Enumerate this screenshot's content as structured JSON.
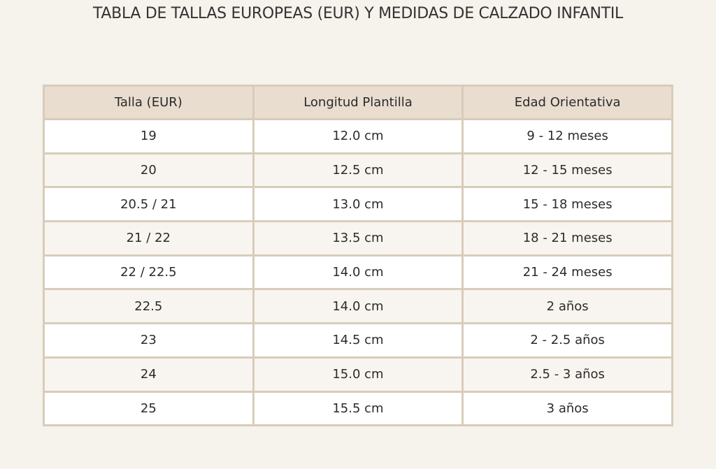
{
  "header": {
    "title": "TABLA DE TALLAS EUROPEAS (EUR) Y MEDIDAS DE CALZADO INFANTIL"
  },
  "table": {
    "columns": [
      "Talla (EUR)",
      "Longitud Plantilla",
      "Edad Orientativa"
    ],
    "rows": [
      [
        "19",
        "12.0 cm",
        "9 - 12 meses"
      ],
      [
        "20",
        "12.5 cm",
        "12 - 15 meses"
      ],
      [
        "20.5 / 21",
        "13.0 cm",
        "15 - 18 meses"
      ],
      [
        "21 / 22",
        "13.5 cm",
        "18 - 21 meses"
      ],
      [
        "22 / 22.5",
        "14.0 cm",
        "21 - 24 meses"
      ],
      [
        "22.5",
        "14.0 cm",
        "2 años"
      ],
      [
        "23",
        "14.5 cm",
        "2 - 2.5 años"
      ],
      [
        "24",
        "15.0 cm",
        "2.5 - 3 años"
      ],
      [
        "25",
        "15.5 cm",
        "3 años"
      ]
    ]
  }
}
